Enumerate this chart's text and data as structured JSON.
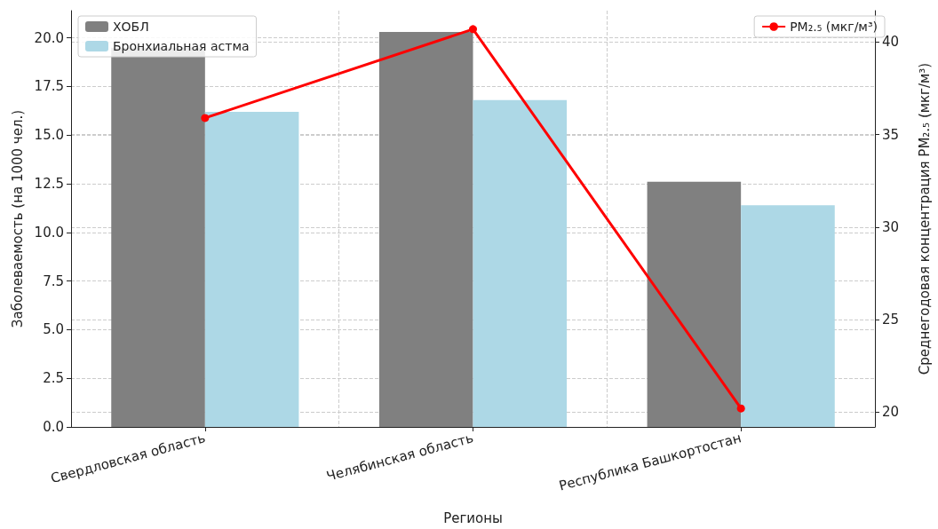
{
  "chart_data": {
    "type": "bar",
    "categories": [
      "Свердловская область",
      "Челябинская область",
      "Республика Башкортостан"
    ],
    "series": [
      {
        "name": "ХОБЛ",
        "color": "#808080",
        "values": [
          19.5,
          20.3,
          12.6
        ]
      },
      {
        "name": "Бронхиальная астма",
        "color": "#add8e6",
        "values": [
          16.2,
          16.8,
          11.4
        ]
      },
      {
        "name": "PM₂.₅ (мкг/м³)",
        "type": "line",
        "axis": "y2",
        "color": "#ff0000",
        "values": [
          35.9,
          40.7,
          20.2
        ]
      }
    ],
    "xlabel": "Регионы",
    "ylabel": "Заболеваемость (на 1000 чел.)",
    "y2label": "Среднегодовая концентрация PM₂.₅ (мкг/м³)",
    "ylim": [
      0,
      21.4
    ],
    "yticks": [
      {
        "value": 0,
        "label": "0.0"
      },
      2.5,
      {
        "value": 5,
        "label": "5.0"
      },
      {
        "value": 7.5,
        "label": "7.5"
      },
      {
        "value": 10,
        "label": "10.0"
      },
      12.5,
      {
        "value": 15,
        "label": "15.0"
      },
      17.5,
      {
        "value": 20,
        "label": "20.0"
      }
    ],
    "y2lim": [
      19.2,
      41.7
    ],
    "y2ticks": [
      20,
      25,
      30,
      35,
      40
    ],
    "grid": true,
    "legend": "top",
    "marker": "circle",
    "line_style": "solid"
  }
}
